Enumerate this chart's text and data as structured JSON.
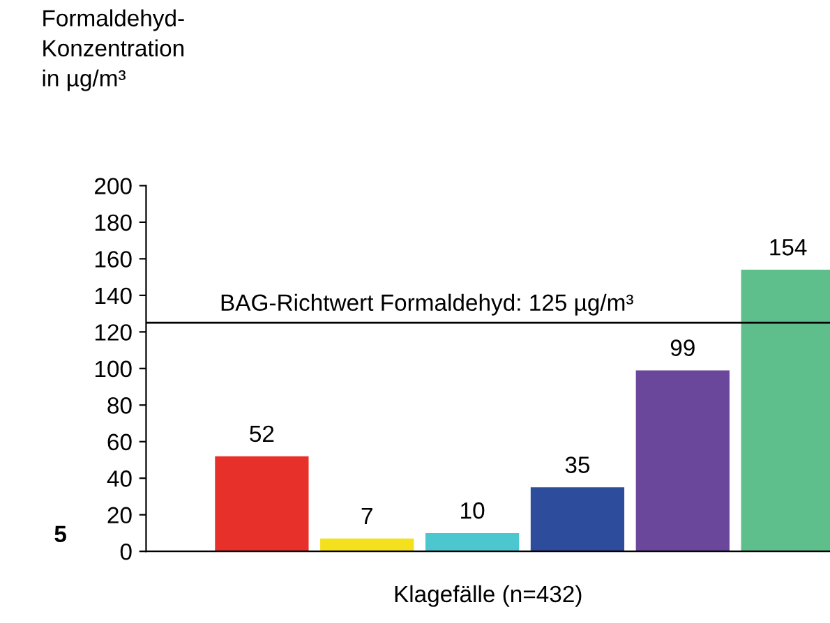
{
  "chart_data": {
    "type": "bar",
    "ylabel": "Formaldehyd-\nKonzentration\nin µg/m³",
    "xlabel": "Klagefälle (n=432)",
    "categories": [
      null,
      null,
      null,
      null,
      null,
      null
    ],
    "values": [
      52,
      7,
      10,
      35,
      99,
      154
    ],
    "colors": [
      "#e8302a",
      "#f4e01c",
      "#4cc7cf",
      "#2e4c9c",
      "#6b479c",
      "#5ebf8c"
    ],
    "ylim": [
      0,
      200
    ],
    "yticks": [
      0,
      20,
      40,
      60,
      80,
      100,
      120,
      140,
      160,
      180,
      200
    ],
    "ref_lines": [
      {
        "axis": "y",
        "value": 125,
        "label": "BAG-Richtwert Formaldehyd: 125 µg/m³",
        "color": "#000000"
      }
    ],
    "data_labels": true,
    "grid": false,
    "legend": false,
    "annotations": [
      "5"
    ]
  }
}
